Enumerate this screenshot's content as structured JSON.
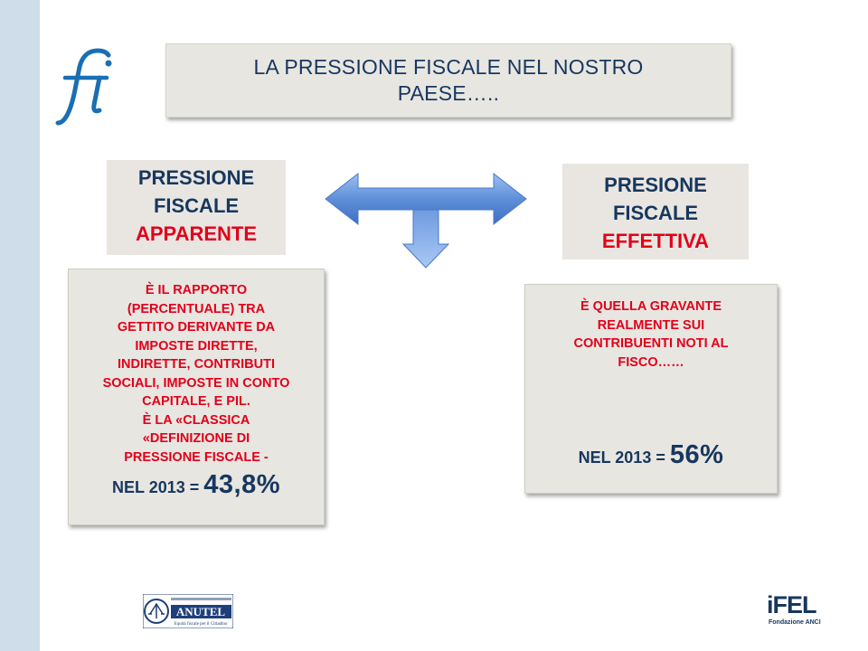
{
  "title": "LA PRESSIONE FISCALE NEL NOSTRO PAESE…..",
  "left_label": {
    "line1": "PRESSIONE",
    "line2": "FISCALE",
    "line3": "APPARENTE"
  },
  "right_label": {
    "line1": "PRESIONE",
    "line2": "FISCALE",
    "line3": "EFFETTIVA"
  },
  "left_desc": {
    "text": "È IL RAPPORTO\n(PERCENTUALE) TRA\nGETTITO DERIVANTE DA\nIMPOSTE DIRETTE,\nINDIRETTE, CONTRIBUTI\nSOCIALI, IMPOSTE IN CONTO\nCAPITALE, E PIL.\nÈ LA «CLASSICA\n«DEFINIZIONE DI\nPRESSIONE FISCALE -",
    "year_label": "NEL 2013 = ",
    "value": "43,8%"
  },
  "right_desc": {
    "text": "È QUELLA GRAVANTE\nREALMENTE SUI\nCONTRIBUENTI NOTI AL\nFISCO……",
    "year_label": "NEL 2013 = ",
    "value": "56%"
  },
  "logos": {
    "brand": "fi",
    "anutel": "ANUTEL",
    "anutel_tagline": "Equità fiscale per il Cittadino",
    "ifel": "iFEL",
    "ifel_sub": "Fondazione ANCI"
  },
  "colors": {
    "navy": "#17375e",
    "red": "#e2001a",
    "box_bg": "#e8e6e1",
    "arrow_blue": "#5b8bd6"
  }
}
